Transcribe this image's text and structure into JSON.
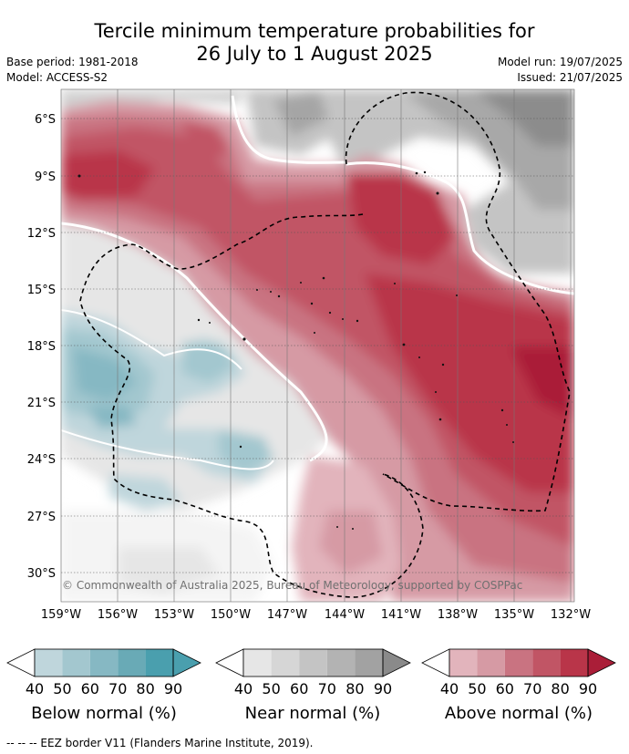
{
  "header": {
    "title_line1": "Tercile minimum temperature probabilities for",
    "title_line2": "26 July to 1 August 2025",
    "base_period": "Base period: 1981-2018",
    "model": "Model: ACCESS-S2",
    "model_run": "Model run: 19/07/2025",
    "issued": "Issued: 21/07/2025"
  },
  "map": {
    "lat_labels": [
      "6°S",
      "9°S",
      "12°S",
      "15°S",
      "18°S",
      "21°S",
      "24°S",
      "27°S",
      "30°S"
    ],
    "lon_labels": [
      "159°W",
      "156°W",
      "153°W",
      "150°W",
      "147°W",
      "144°W",
      "141°W",
      "138°W",
      "135°W",
      "132°W"
    ],
    "copyright": "© Commonwealth of Australia 2025, Bureau of Meteorology, supported by COSPPac"
  },
  "legend": {
    "ticks": [
      "40",
      "50",
      "60",
      "70",
      "80",
      "90"
    ],
    "below": {
      "title": "Below normal (%)",
      "colors": [
        "#bfd6dc",
        "#a3c7cf",
        "#86b8c3",
        "#69aab6",
        "#4a9fae"
      ]
    },
    "near": {
      "title": "Near normal (%)",
      "colors": [
        "#e6e6e6",
        "#d6d6d6",
        "#c4c4c4",
        "#b3b3b3",
        "#a2a2a2"
      ],
      "arrow": "#8a8a8a"
    },
    "above": {
      "title": "Above normal (%)",
      "colors": [
        "#e2b4bc",
        "#d69aa4",
        "#c97381",
        "#c15565",
        "#b93549"
      ],
      "arrow": "#aa1e38"
    }
  },
  "footnote": "-- -- -- EEZ border V11 (Flanders Marine Institute, 2019)."
}
